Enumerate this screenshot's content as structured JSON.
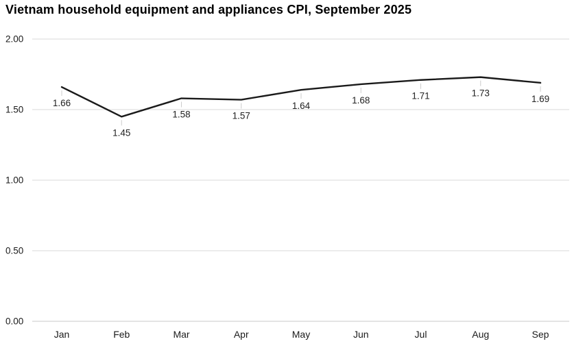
{
  "title": "Vietnam household equipment and appliances CPI, September 2025",
  "chart_data": {
    "type": "line",
    "title": "Vietnam household equipment and appliances CPI, September 2025",
    "categories": [
      "Jan",
      "Feb",
      "Mar",
      "Apr",
      "May",
      "Jun",
      "Jul",
      "Aug",
      "Sep"
    ],
    "values": [
      1.66,
      1.45,
      1.58,
      1.57,
      1.64,
      1.68,
      1.71,
      1.73,
      1.69
    ],
    "data_labels": [
      "1.66",
      "1.45",
      "1.58",
      "1.57",
      "1.64",
      "1.68",
      "1.71",
      "1.73",
      "1.69"
    ],
    "xlabel": "",
    "ylabel": "",
    "ylim": [
      0,
      2
    ],
    "yticks": [
      0,
      0.5,
      1,
      1.5,
      2
    ],
    "ytick_labels": [
      "0.00",
      "0.50",
      "1.00",
      "1.50",
      "2.00"
    ],
    "grid": true,
    "legend_position": "none",
    "colors": {
      "line": "#1a1a1a",
      "grid": "#d9d9d9",
      "baseline": "#c9c9c9",
      "axis_text": "#1a1a1a",
      "data_label_text": "#222222",
      "leader": "#cccccc"
    }
  }
}
